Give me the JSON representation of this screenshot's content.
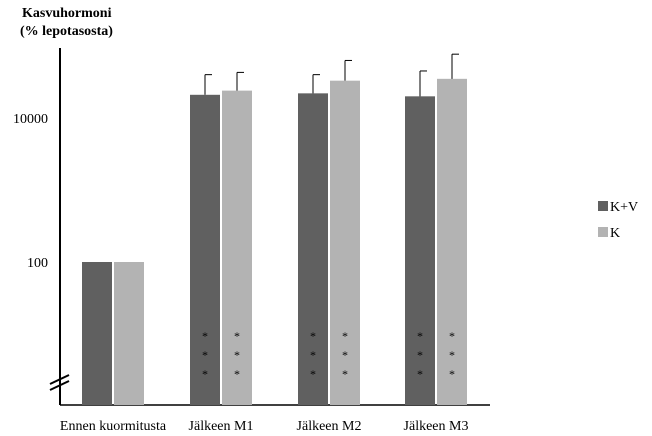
{
  "chart_data": {
    "type": "bar",
    "title_lines": [
      "Kasvuhormoni",
      "(% lepotasosta)"
    ],
    "xlabel": "",
    "yscale": "log",
    "ylim": [
      8,
      100000
    ],
    "yticks": [
      100,
      10000
    ],
    "ytick_labels": [
      "100",
      "10000"
    ],
    "axis_break": true,
    "grid": false,
    "legend_position": "right",
    "categories": [
      "Ennen kuormitusta",
      "Jälkeen M1",
      "Jälkeen M2",
      "Jälkeen M3"
    ],
    "series": [
      {
        "name": "K+V",
        "color": "#606060",
        "values": [
          100,
          21000,
          22000,
          20000
        ],
        "error_upper": [
          null,
          40000,
          40000,
          45000
        ]
      },
      {
        "name": "K",
        "color": "#b3b3b3",
        "values": [
          100,
          24000,
          33000,
          35000
        ],
        "error_upper": [
          null,
          43000,
          63000,
          77000
        ]
      }
    ],
    "annotations": [
      {
        "category": "Jälkeen M1",
        "series": "K+V",
        "text": "* * *"
      },
      {
        "category": "Jälkeen M1",
        "series": "K",
        "text": "* * *"
      },
      {
        "category": "Jälkeen M2",
        "series": "K+V",
        "text": "* * *"
      },
      {
        "category": "Jälkeen M2",
        "series": "K",
        "text": "* * *"
      },
      {
        "category": "Jälkeen M3",
        "series": "K+V",
        "text": "* * *"
      },
      {
        "category": "Jälkeen M3",
        "series": "K",
        "text": "* * *"
      }
    ]
  }
}
